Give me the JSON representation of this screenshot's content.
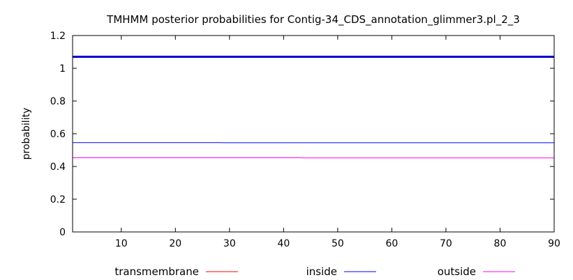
{
  "chart_data": {
    "type": "line",
    "title": "TMHMM posterior probabilities for Contig-34_CDS_annotation_glimmer3.pl_2_3",
    "xlabel": "",
    "ylabel": "probability",
    "xlim": [
      1,
      90
    ],
    "ylim": [
      0,
      1.2
    ],
    "x_ticks": [
      10,
      20,
      30,
      40,
      50,
      60,
      70,
      80,
      90
    ],
    "x_tick_labels": [
      "10",
      "20",
      "30",
      "40",
      "50",
      "60",
      "70",
      "80",
      "90"
    ],
    "y_ticks": [
      0,
      0.2,
      0.4,
      0.6,
      0.8,
      1,
      1.2
    ],
    "y_tick_labels": [
      "0",
      "0.2",
      "0.4",
      "0.6",
      "0.8",
      "1",
      "1.2"
    ],
    "grid": false,
    "legend_position": "bottom",
    "series": [
      {
        "name": "transmembrane",
        "color": "#ff0000",
        "x": [
          1,
          90
        ],
        "y": [
          0,
          0
        ]
      },
      {
        "name": "inside",
        "color": "#0000ff",
        "x": [
          1,
          28,
          29,
          90
        ],
        "y": [
          0.546,
          0.546,
          0.545,
          0.545
        ]
      },
      {
        "name": "outside",
        "color": "#ff00ff",
        "x": [
          1,
          43,
          44,
          90
        ],
        "y": [
          0.453,
          0.453,
          0.452,
          0.452
        ]
      }
    ],
    "annotations": [
      {
        "label": "",
        "color": "#0000cc",
        "x": [
          1,
          90
        ],
        "y": [
          1.07,
          1.07
        ]
      }
    ]
  }
}
